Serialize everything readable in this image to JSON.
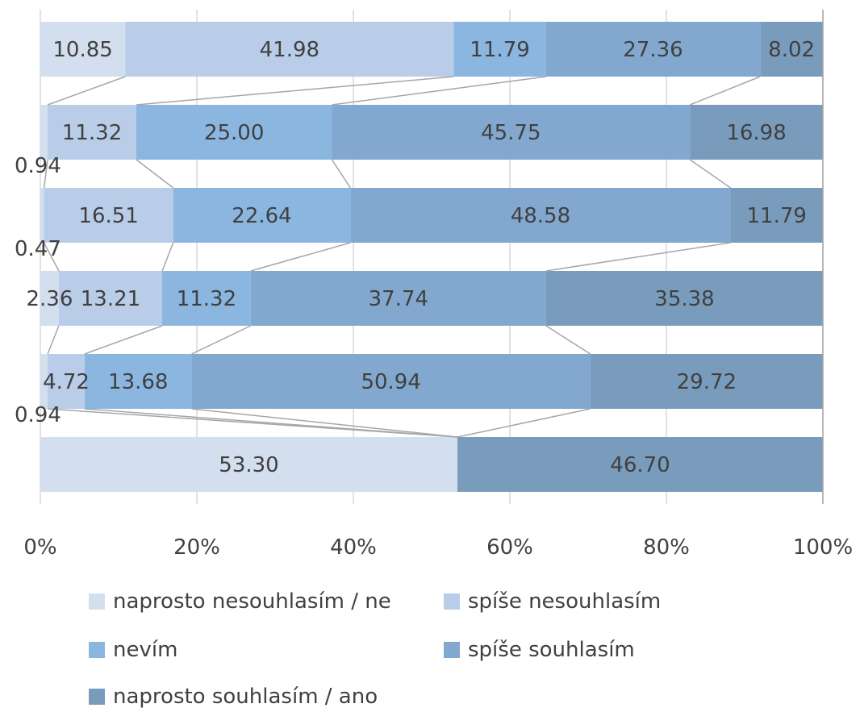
{
  "chart_data": {
    "type": "bar",
    "orientation": "horizontal",
    "stacked": "percent",
    "title": "",
    "xlabel": "",
    "ylabel": "",
    "xlim": [
      0,
      100
    ],
    "x_ticks": [
      "0%",
      "20%",
      "40%",
      "60%",
      "80%",
      "100%"
    ],
    "grid": true,
    "legend_position": "bottom",
    "series_lines": true,
    "rows": [
      {
        "values": [
          10.85,
          41.98,
          11.79,
          27.36,
          8.02
        ]
      },
      {
        "values": [
          0.94,
          11.32,
          25.0,
          45.75,
          16.98
        ]
      },
      {
        "values": [
          0.47,
          16.51,
          22.64,
          48.58,
          11.79
        ]
      },
      {
        "values": [
          2.36,
          13.21,
          11.32,
          37.74,
          35.38
        ]
      },
      {
        "values": [
          0.94,
          4.72,
          13.68,
          50.94,
          29.72
        ]
      },
      {
        "values": [
          53.3,
          0,
          0,
          0,
          46.7
        ]
      }
    ],
    "series": [
      {
        "name": "naprosto nesouhlasím / ne",
        "color": "#d3deee"
      },
      {
        "name": "spíše nesouhlasím",
        "color": "#b9cde9"
      },
      {
        "name": "nevím",
        "color": "#8bb6e0"
      },
      {
        "name": "spíše souhlasím",
        "color": "#82a8cf"
      },
      {
        "name": "naprosto souhlasím / ano",
        "color": "#7a9cbc"
      }
    ],
    "data_labels": [
      [
        "10.85",
        "41.98",
        "11.79",
        "27.36",
        "8.02"
      ],
      [
        "0.94",
        "11.32",
        "25.00",
        "45.75",
        "16.98"
      ],
      [
        "0.47",
        "16.51",
        "22.64",
        "48.58",
        "11.79"
      ],
      [
        "2.36",
        "13.21",
        "11.32",
        "37.74",
        "35.38"
      ],
      [
        "0.94",
        "4.72",
        "13.68",
        "50.94",
        "29.72"
      ],
      [
        "53.30",
        "",
        "",
        "",
        "46.70"
      ]
    ]
  }
}
